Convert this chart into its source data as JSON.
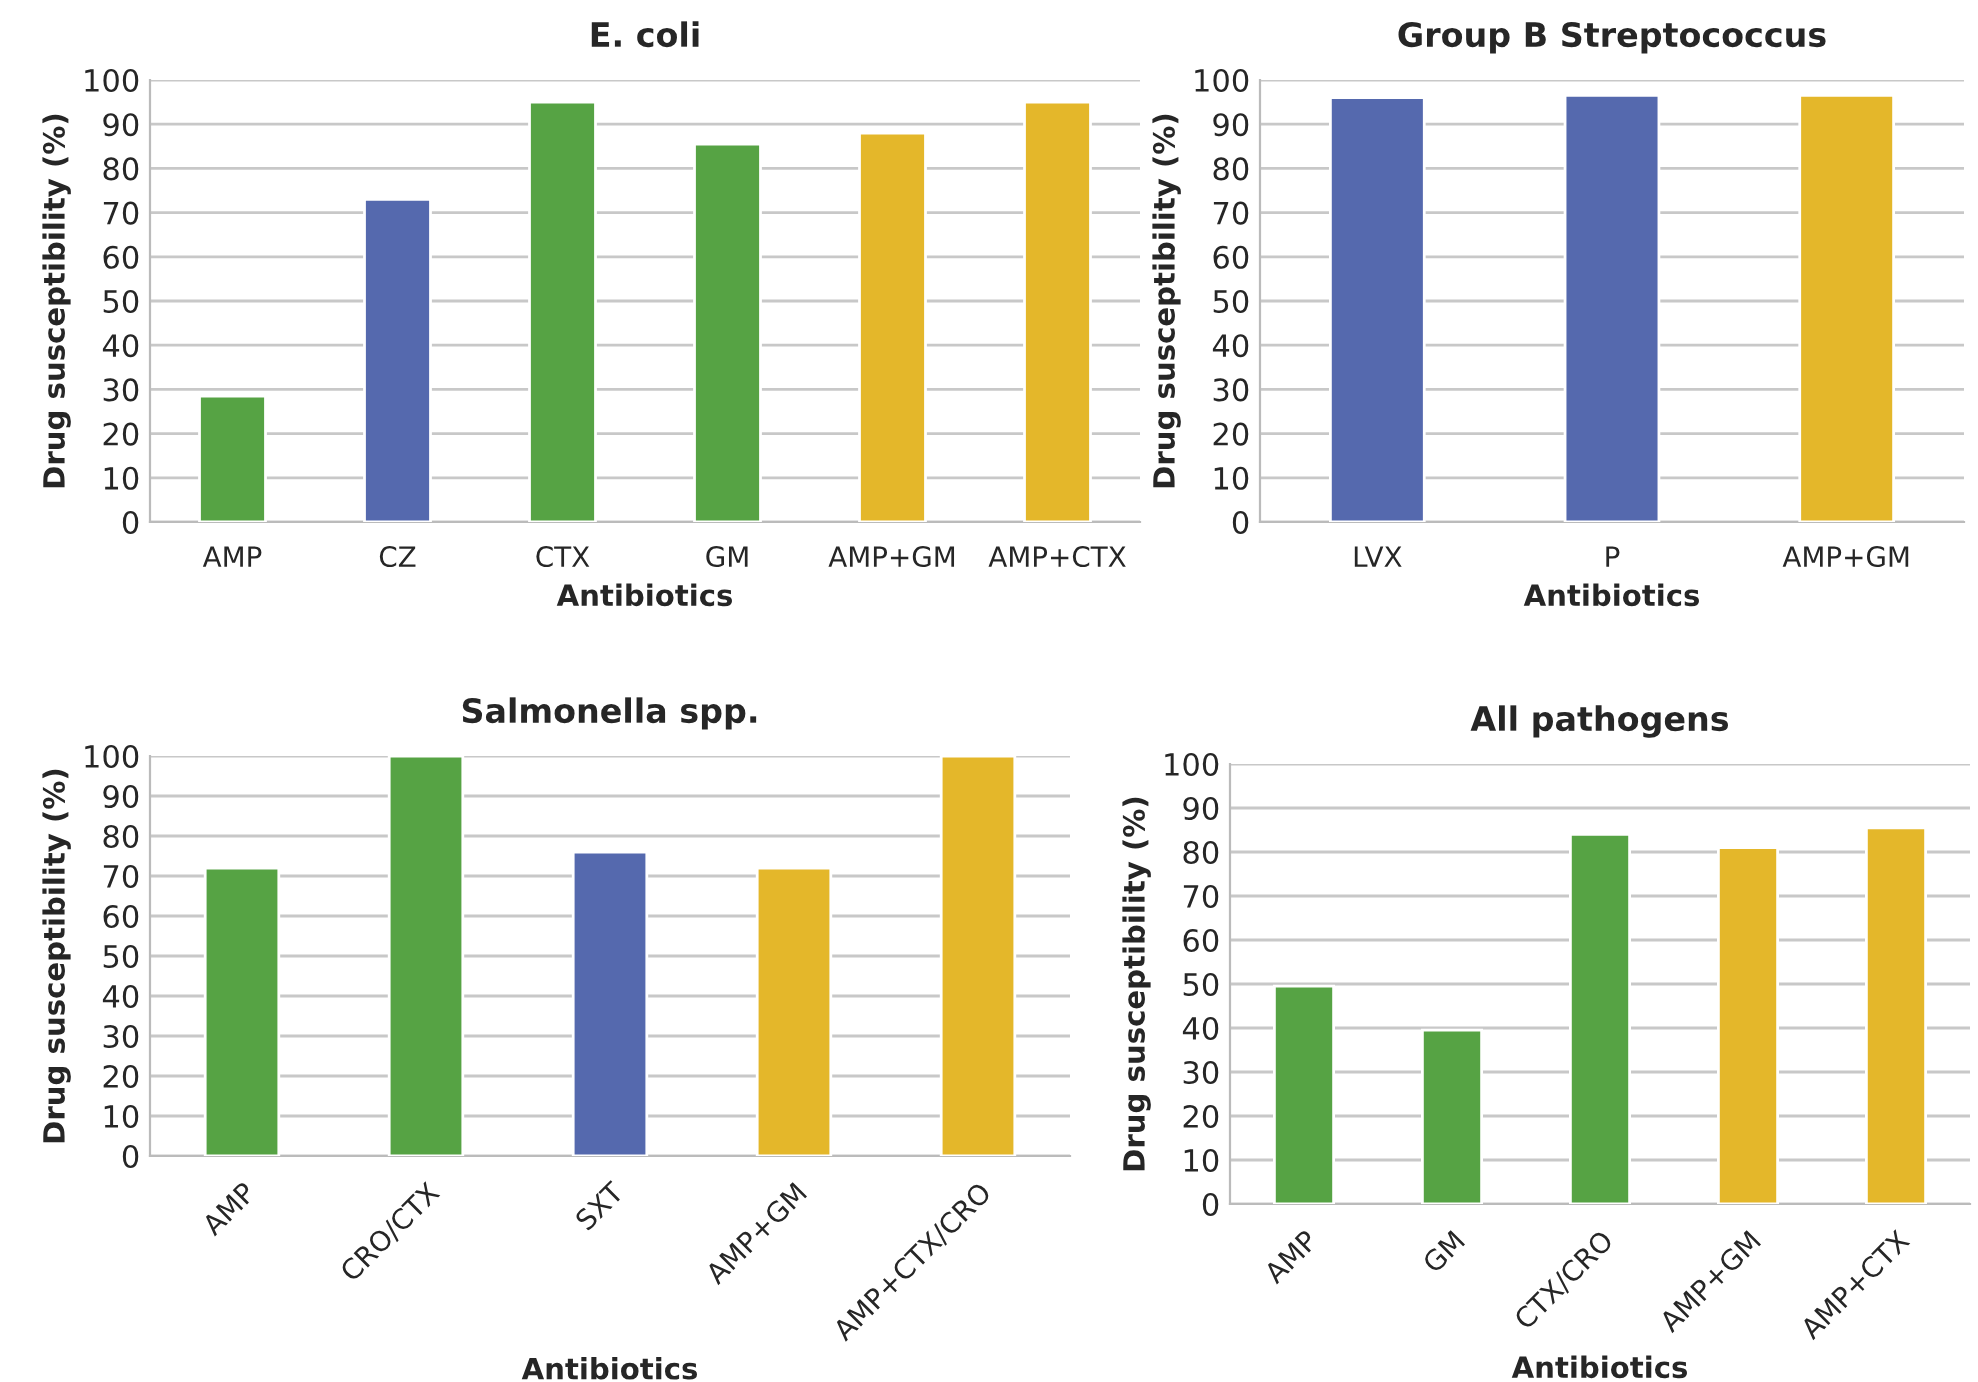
{
  "chart_data": [
    {
      "type": "bar",
      "title": "E. coli",
      "xlabel": "Antibiotics",
      "ylabel": "Drug susceptibility (%)",
      "categories": [
        "AMP",
        "CZ",
        "CTX",
        "GM",
        "AMP+GM",
        "AMP+CTX"
      ],
      "values": [
        28.5,
        73,
        95,
        85.5,
        88,
        95
      ],
      "colors": [
        "#56a344",
        "#5569ae",
        "#56a344",
        "#56a344",
        "#e4b72a",
        "#e4b72a"
      ],
      "ylim": [
        0,
        100
      ],
      "yticks": [
        0,
        10,
        20,
        30,
        40,
        50,
        60,
        70,
        80,
        90,
        100
      ],
      "grid": "y",
      "legend": false
    },
    {
      "type": "bar",
      "title": "Group B Streptococcus",
      "xlabel": "Antibiotics",
      "ylabel": "Drug susceptibility (%)",
      "categories": [
        "LVX",
        "P",
        "AMP+GM"
      ],
      "values": [
        96,
        96.5,
        96.5
      ],
      "colors": [
        "#5569ae",
        "#5569ae",
        "#e4b72a"
      ],
      "ylim": [
        0,
        100
      ],
      "yticks": [
        0,
        10,
        20,
        30,
        40,
        50,
        60,
        70,
        80,
        90,
        100
      ],
      "grid": "y",
      "legend": false
    },
    {
      "type": "bar",
      "title": "Salmonella spp.",
      "xlabel": "Antibiotics",
      "ylabel": "Drug susceptibility (%)",
      "categories": [
        "AMP",
        "CRO/CTX",
        "SXT",
        "AMP+GM",
        "AMP+CTX/CRO"
      ],
      "values": [
        72,
        100,
        76,
        72,
        100
      ],
      "colors": [
        "#56a344",
        "#56a344",
        "#5569ae",
        "#e4b72a",
        "#e4b72a"
      ],
      "ylim": [
        0,
        100
      ],
      "yticks": [
        0,
        10,
        20,
        30,
        40,
        50,
        60,
        70,
        80,
        90,
        100
      ],
      "grid": "y",
      "legend": false
    },
    {
      "type": "bar",
      "title": "All pathogens",
      "xlabel": "Antibiotics",
      "ylabel": "Drug susceptibility (%)",
      "categories": [
        "AMP",
        "GM",
        "CTX/CRO",
        "AMP+GM",
        "AMP+CTX"
      ],
      "values": [
        49.5,
        39.5,
        84,
        81,
        85.5
      ],
      "colors": [
        "#56a344",
        "#56a344",
        "#56a344",
        "#e4b72a",
        "#e4b72a"
      ],
      "ylim": [
        0,
        100
      ],
      "yticks": [
        0,
        10,
        20,
        30,
        40,
        50,
        60,
        70,
        80,
        90,
        100
      ],
      "grid": "y",
      "legend": false
    }
  ]
}
